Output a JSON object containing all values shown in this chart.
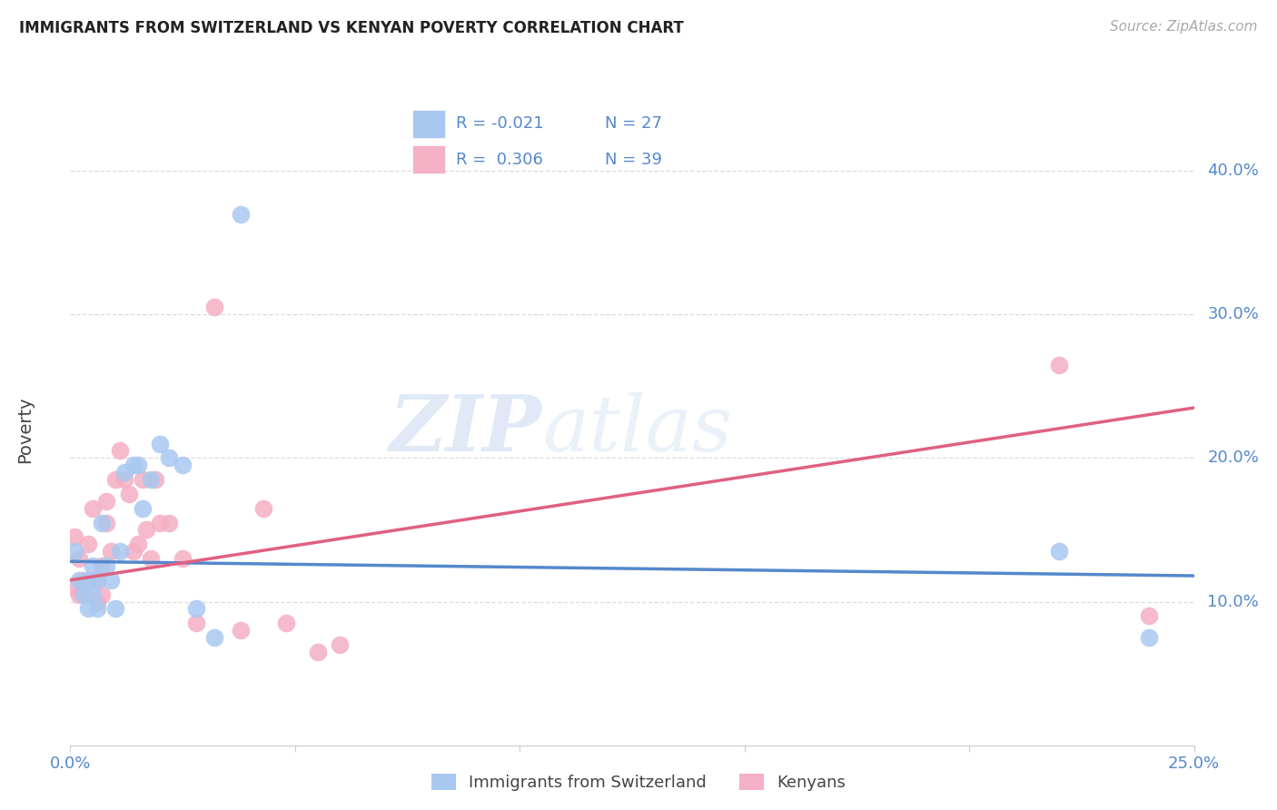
{
  "title": "IMMIGRANTS FROM SWITZERLAND VS KENYAN POVERTY CORRELATION CHART",
  "source": "Source: ZipAtlas.com",
  "ylabel": "Poverty",
  "xlim": [
    0.0,
    0.25
  ],
  "ylim": [
    0.0,
    0.44
  ],
  "xticks": [
    0.0,
    0.05,
    0.1,
    0.15,
    0.2,
    0.25
  ],
  "xticklabels": [
    "0.0%",
    "",
    "",
    "",
    "",
    "25.0%"
  ],
  "yticks_right": [
    0.1,
    0.2,
    0.3,
    0.4
  ],
  "ytick_labels_right": [
    "10.0%",
    "20.0%",
    "30.0%",
    "40.0%"
  ],
  "legend_r1": "R = -0.021",
  "legend_n1": "N = 27",
  "legend_r2": "R =  0.306",
  "legend_n2": "N = 39",
  "legend_label1": "Immigrants from Switzerland",
  "legend_label2": "Kenyans",
  "color_blue": "#a8c8f0",
  "color_pink": "#f4b0c4",
  "color_blue_line": "#5588cc",
  "color_pink_line": "#e06080",
  "watermark_zip": "ZIP",
  "watermark_atlas": "atlas",
  "blue_x": [
    0.001,
    0.002,
    0.003,
    0.004,
    0.004,
    0.005,
    0.005,
    0.006,
    0.006,
    0.007,
    0.008,
    0.009,
    0.01,
    0.011,
    0.012,
    0.014,
    0.015,
    0.016,
    0.018,
    0.02,
    0.022,
    0.025,
    0.028,
    0.032,
    0.038,
    0.22,
    0.24
  ],
  "blue_y": [
    0.135,
    0.115,
    0.105,
    0.095,
    0.115,
    0.105,
    0.125,
    0.095,
    0.115,
    0.155,
    0.125,
    0.115,
    0.095,
    0.135,
    0.19,
    0.195,
    0.195,
    0.165,
    0.185,
    0.21,
    0.2,
    0.195,
    0.095,
    0.075,
    0.37,
    0.135,
    0.075
  ],
  "pink_x": [
    0.001,
    0.001,
    0.002,
    0.002,
    0.003,
    0.003,
    0.004,
    0.004,
    0.005,
    0.005,
    0.006,
    0.006,
    0.007,
    0.007,
    0.008,
    0.008,
    0.009,
    0.01,
    0.011,
    0.012,
    0.013,
    0.014,
    0.015,
    0.016,
    0.017,
    0.018,
    0.019,
    0.02,
    0.022,
    0.025,
    0.028,
    0.032,
    0.038,
    0.043,
    0.048,
    0.055,
    0.06,
    0.22,
    0.24
  ],
  "pink_y": [
    0.145,
    0.11,
    0.13,
    0.105,
    0.105,
    0.115,
    0.115,
    0.14,
    0.165,
    0.115,
    0.115,
    0.1,
    0.125,
    0.105,
    0.155,
    0.17,
    0.135,
    0.185,
    0.205,
    0.185,
    0.175,
    0.135,
    0.14,
    0.185,
    0.15,
    0.13,
    0.185,
    0.155,
    0.155,
    0.13,
    0.085,
    0.305,
    0.08,
    0.165,
    0.085,
    0.065,
    0.07,
    0.265,
    0.09
  ],
  "blue_trend_x": [
    0.0,
    0.25
  ],
  "blue_trend_y": [
    0.128,
    0.118
  ],
  "pink_trend_x": [
    0.0,
    0.25
  ],
  "pink_trend_y": [
    0.115,
    0.235
  ],
  "background_color": "#ffffff",
  "grid_color": "#dddddd",
  "title_fontsize": 12,
  "source_fontsize": 11,
  "tick_fontsize": 13,
  "legend_fontsize": 13
}
